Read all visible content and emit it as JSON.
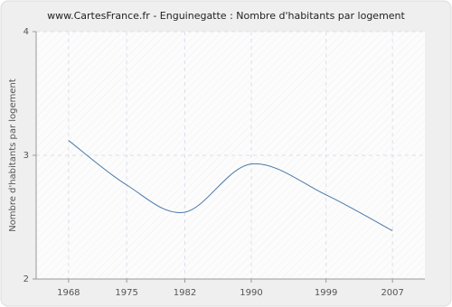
{
  "chart_data": {
    "type": "line",
    "title": "www.CartesFrance.fr - Enguinegatte : Nombre d'habitants par logement",
    "y_label": "Nombre d'habitants par logement",
    "x": [
      1968,
      1975,
      1982,
      1990,
      1999,
      2007
    ],
    "series": [
      {
        "name": "Nombre d'habitants par logement",
        "color": "#4a78a8",
        "values": [
          3.12,
          2.76,
          2.54,
          2.93,
          2.68,
          2.39
        ]
      }
    ],
    "xlim": [
      1964.1,
      2010.9
    ],
    "xticks": [
      1968,
      1975,
      1982,
      1990,
      1999,
      2007
    ],
    "ylim": [
      2,
      4
    ],
    "yticks": [
      2,
      3,
      4
    ],
    "grid": true
  }
}
